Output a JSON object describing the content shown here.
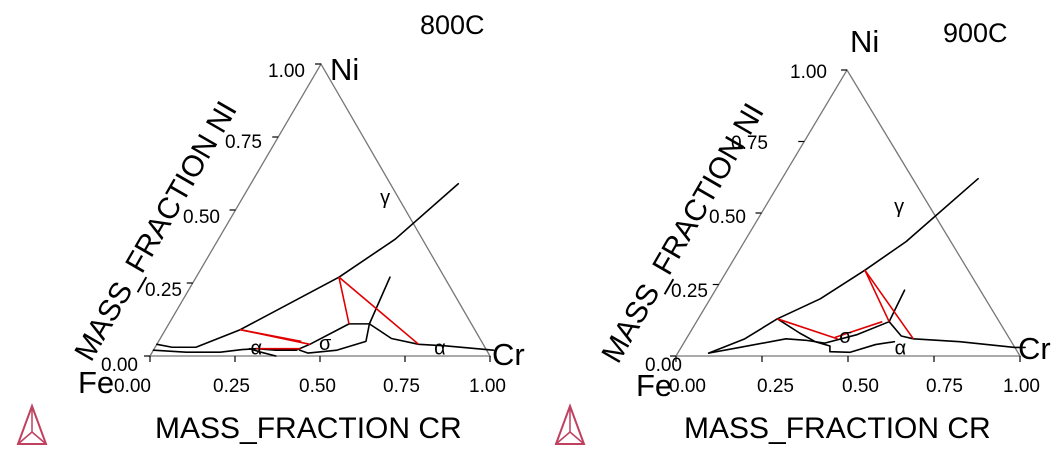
{
  "chart_data": [
    {
      "type": "ternary",
      "title": "800C",
      "vertices": {
        "bottom_left": "Fe",
        "top": "Ni",
        "bottom_right": "Cr"
      },
      "xlabel": "MASS_FRACTION CR",
      "ylabel": "MASS_FRACTION NI",
      "x_ticks": [
        "0.00",
        "0.25",
        "0.50",
        "0.75",
        "1.00"
      ],
      "y_ticks": [
        "0.00",
        "0.25",
        "0.50",
        "0.75",
        "1.00"
      ],
      "grid": false,
      "phase_labels": [
        {
          "text": "γ",
          "cr": 0.43,
          "ni": 0.52
        },
        {
          "text": "α",
          "cr": 0.31,
          "ni": 0.005
        },
        {
          "text": "σ",
          "cr": 0.505,
          "ni": 0.02
        },
        {
          "text": "α",
          "cr": 0.85,
          "ni": 0.005
        }
      ],
      "boundaries": [
        [
          [
            0.0,
            0.04
          ],
          [
            0.05,
            0.03
          ],
          [
            0.12,
            0.03
          ],
          [
            0.17,
            0.06
          ],
          [
            0.22,
            0.09
          ],
          [
            0.42,
            0.27
          ],
          [
            0.52,
            0.4
          ],
          [
            0.61,
            0.59
          ]
        ],
        [
          [
            0.0,
            0.02
          ],
          [
            0.1,
            0.013
          ],
          [
            0.2,
            0.013
          ],
          [
            0.26,
            0.022
          ],
          [
            0.3,
            0.025
          ],
          [
            0.36,
            0.02
          ],
          [
            0.42,
            0.02
          ]
        ],
        [
          [
            0.28,
            0.025
          ],
          [
            0.32,
            0.013
          ],
          [
            0.37,
            0.0
          ]
        ],
        [
          [
            0.42,
            0.02
          ],
          [
            0.45,
            0.04
          ],
          [
            0.53,
            0.11
          ],
          [
            0.59,
            0.11
          ]
        ],
        [
          [
            0.59,
            0.11
          ],
          [
            0.61,
            0.05
          ],
          [
            0.54,
            0.02
          ],
          [
            0.46,
            0.01
          ],
          [
            0.43,
            0.02
          ]
        ],
        [
          [
            0.57,
            0.27
          ],
          [
            0.59,
            0.11
          ]
        ],
        [
          [
            0.59,
            0.11
          ],
          [
            0.68,
            0.06
          ],
          [
            0.77,
            0.04
          ],
          [
            0.85,
            0.035
          ],
          [
            1.0,
            0.02
          ]
        ]
      ],
      "tie_lines": [
        [
          [
            0.42,
            0.27
          ],
          [
            0.53,
            0.11
          ]
        ],
        [
          [
            0.42,
            0.27
          ],
          [
            0.77,
            0.04
          ]
        ],
        [
          [
            0.22,
            0.09
          ],
          [
            0.42,
            0.05
          ]
        ],
        [
          [
            0.22,
            0.09
          ],
          [
            0.45,
            0.04
          ]
        ],
        [
          [
            0.3,
            0.025
          ],
          [
            0.43,
            0.025
          ]
        ]
      ]
    },
    {
      "type": "ternary",
      "title": "900C",
      "vertices": {
        "bottom_left": "Fe",
        "top": "Ni",
        "bottom_right": "Cr"
      },
      "xlabel": "MASS_FRACTION CR",
      "ylabel": "MASS_FRACTION NI",
      "x_ticks": [
        "0.00",
        "0.25",
        "0.50",
        "0.75",
        "1.00"
      ],
      "y_ticks": [
        "0.00",
        "0.25",
        "0.50",
        "0.75",
        "1.00"
      ],
      "grid": false,
      "phase_labels": [
        {
          "text": "γ",
          "cr": 0.4,
          "ni": 0.5
        },
        {
          "text": "σ",
          "cr": 0.47,
          "ni": 0.045
        },
        {
          "text": "α",
          "cr": 0.65,
          "ni": 0.005
        }
      ],
      "boundaries": [
        [
          [
            0.09,
            0.01
          ],
          [
            0.17,
            0.06
          ],
          [
            0.23,
            0.13
          ],
          [
            0.32,
            0.2
          ],
          [
            0.4,
            0.3
          ],
          [
            0.47,
            0.4
          ],
          [
            0.57,
            0.62
          ]
        ],
        [
          [
            0.09,
            0.01
          ],
          [
            0.17,
            0.03
          ],
          [
            0.29,
            0.06
          ],
          [
            0.35,
            0.055
          ],
          [
            0.41,
            0.045
          ]
        ],
        [
          [
            0.23,
            0.13
          ],
          [
            0.32,
            0.08
          ],
          [
            0.38,
            0.05
          ],
          [
            0.43,
            0.035
          ]
        ],
        [
          [
            0.43,
            0.035
          ],
          [
            0.44,
            0.015
          ],
          [
            0.5,
            0.013
          ],
          [
            0.56,
            0.04
          ],
          [
            0.61,
            0.05
          ]
        ],
        [
          [
            0.41,
            0.045
          ],
          [
            0.49,
            0.075
          ],
          [
            0.56,
            0.12
          ]
        ],
        [
          [
            0.55,
            0.23
          ],
          [
            0.56,
            0.12
          ]
        ],
        [
          [
            0.56,
            0.12
          ],
          [
            0.62,
            0.07
          ],
          [
            0.66,
            0.06
          ],
          [
            0.8,
            0.05
          ],
          [
            0.97,
            0.03
          ],
          [
            1.0,
            0.03
          ]
        ]
      ],
      "tie_lines": [
        [
          [
            0.4,
            0.3
          ],
          [
            0.56,
            0.12
          ]
        ],
        [
          [
            0.4,
            0.3
          ],
          [
            0.66,
            0.06
          ]
        ],
        [
          [
            0.23,
            0.13
          ],
          [
            0.44,
            0.06
          ]
        ],
        [
          [
            0.43,
            0.065
          ],
          [
            0.54,
            0.12
          ]
        ]
      ]
    }
  ]
}
